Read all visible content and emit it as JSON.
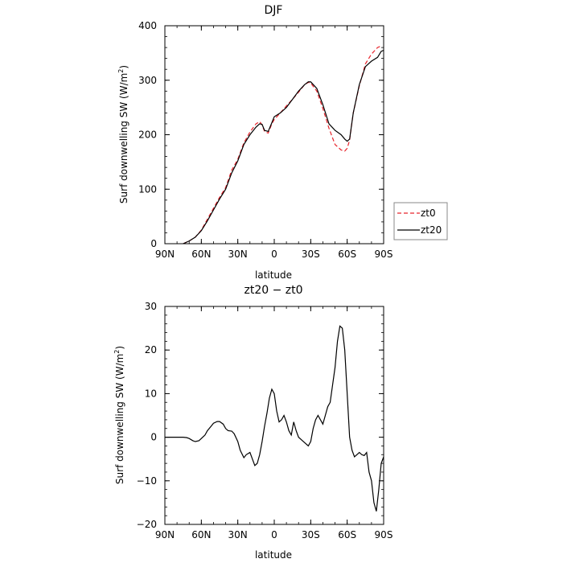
{
  "chart_data": [
    {
      "type": "line",
      "title": "DJF",
      "xlabel": "latitude",
      "ylabel": "Surf downwelling SW (W/m²)",
      "ylabel_main": "Surf downwelling SW  (W/m",
      "ylabel_sup": "2",
      "ylabel_close": ")",
      "xlim": [
        90,
        -90
      ],
      "ylim": [
        0,
        400
      ],
      "xtick_values": [
        90,
        60,
        30,
        0,
        -30,
        -60,
        -90
      ],
      "xtick_labels": [
        "90N",
        "60N",
        "30N",
        "0",
        "30S",
        "60S",
        "90S"
      ],
      "ytick_values": [
        0,
        100,
        200,
        300,
        400
      ],
      "ytick_labels": [
        "0",
        "100",
        "200",
        "300",
        "400"
      ],
      "legend_position": "outside-right",
      "series": [
        {
          "name": "zt0",
          "color": "#e8242c",
          "dash": "dashed",
          "x": [
            75,
            70,
            65,
            60,
            55,
            50,
            45,
            40,
            35,
            30,
            25,
            20,
            15,
            12,
            10,
            8,
            5,
            2,
            0,
            -5,
            -10,
            -15,
            -20,
            -25,
            -28,
            -30,
            -35,
            -40,
            -45,
            -50,
            -55,
            -58,
            -60,
            -62,
            -65,
            -70,
            -75,
            -80,
            -85,
            -88
          ],
          "y": [
            0,
            5,
            12,
            25,
            45,
            65,
            85,
            103,
            135,
            155,
            185,
            205,
            220,
            224,
            218,
            206,
            203,
            220,
            228,
            240,
            253,
            265,
            278,
            292,
            296,
            295,
            280,
            248,
            212,
            182,
            172,
            170,
            175,
            190,
            240,
            290,
            330,
            348,
            360,
            363
          ]
        },
        {
          "name": "zt20",
          "color": "#000000",
          "dash": "solid",
          "x": [
            75,
            70,
            65,
            60,
            55,
            50,
            45,
            40,
            35,
            30,
            25,
            20,
            15,
            12,
            10,
            8,
            5,
            2,
            0,
            -5,
            -10,
            -15,
            -20,
            -25,
            -28,
            -30,
            -35,
            -40,
            -45,
            -50,
            -55,
            -58,
            -60,
            -62,
            -65,
            -70,
            -75,
            -80,
            -85,
            -88,
            -90
          ],
          "y": [
            0,
            5,
            12,
            24,
            42,
            62,
            82,
            100,
            130,
            152,
            182,
            200,
            214,
            220,
            219,
            208,
            206,
            222,
            233,
            240,
            250,
            265,
            280,
            292,
            297,
            297,
            285,
            255,
            220,
            208,
            200,
            192,
            188,
            192,
            240,
            292,
            325,
            335,
            342,
            353,
            355
          ]
        }
      ]
    },
    {
      "type": "line",
      "title": "zt20 − zt0",
      "xlabel": "latitude",
      "ylabel": "Surf downwelling SW (W/m²)",
      "ylabel_main": "Surf downwelling SW  (W/m",
      "ylabel_sup": "2",
      "ylabel_close": ")",
      "xlim": [
        90,
        -90
      ],
      "ylim": [
        -20,
        30
      ],
      "xtick_values": [
        90,
        60,
        30,
        0,
        -30,
        -60,
        -90
      ],
      "xtick_labels": [
        "90N",
        "60N",
        "30N",
        "0",
        "30S",
        "60S",
        "90S"
      ],
      "ytick_values": [
        -20,
        -10,
        0,
        10,
        20,
        30
      ],
      "ytick_labels": [
        "−20",
        "−10",
        "0",
        "10",
        "20",
        "30"
      ],
      "series": [
        {
          "name": "",
          "color": "#000000",
          "dash": "solid",
          "x": [
            90,
            80,
            75,
            72,
            70,
            67,
            65,
            62,
            60,
            57,
            55,
            52,
            50,
            47,
            45,
            42,
            40,
            38,
            35,
            33,
            30,
            28,
            25,
            23,
            20,
            18,
            16,
            14,
            12,
            10,
            8,
            6,
            4,
            2,
            0,
            -2,
            -4,
            -6,
            -8,
            -10,
            -12,
            -14,
            -16,
            -18,
            -20,
            -22,
            -24,
            -26,
            -28,
            -30,
            -32,
            -34,
            -36,
            -38,
            -40,
            -42,
            -44,
            -46,
            -48,
            -50,
            -52,
            -54,
            -56,
            -58,
            -60,
            -62,
            -64,
            -66,
            -68,
            -70,
            -72,
            -74,
            -76,
            -78,
            -80,
            -82,
            -84,
            -86,
            -88,
            -90
          ],
          "y": [
            0,
            0,
            0,
            -0.1,
            -0.3,
            -0.8,
            -1.0,
            -0.8,
            -0.3,
            0.5,
            1.5,
            2.5,
            3.2,
            3.6,
            3.6,
            3.0,
            2.0,
            1.5,
            1.4,
            0.8,
            -1.0,
            -3.0,
            -4.7,
            -4.0,
            -3.5,
            -5.0,
            -6.5,
            -6.0,
            -4.0,
            -1.0,
            2.5,
            5.5,
            9.0,
            11.0,
            10.0,
            6.0,
            3.5,
            4.0,
            5.0,
            3.5,
            1.5,
            0.5,
            3.5,
            1.5,
            0.0,
            -0.5,
            -1.0,
            -1.5,
            -2.0,
            -1.0,
            2.0,
            4.0,
            5.0,
            4.0,
            3.0,
            5.0,
            7.0,
            8.0,
            12.0,
            16.0,
            22.0,
            25.5,
            25.0,
            20.0,
            10.0,
            0.0,
            -3.0,
            -4.5,
            -4.0,
            -3.5,
            -4.0,
            -4.2,
            -3.5,
            -8.0,
            -10.0,
            -15.0,
            -17.0,
            -12.0,
            -6.0,
            -4.5
          ]
        }
      ]
    }
  ]
}
